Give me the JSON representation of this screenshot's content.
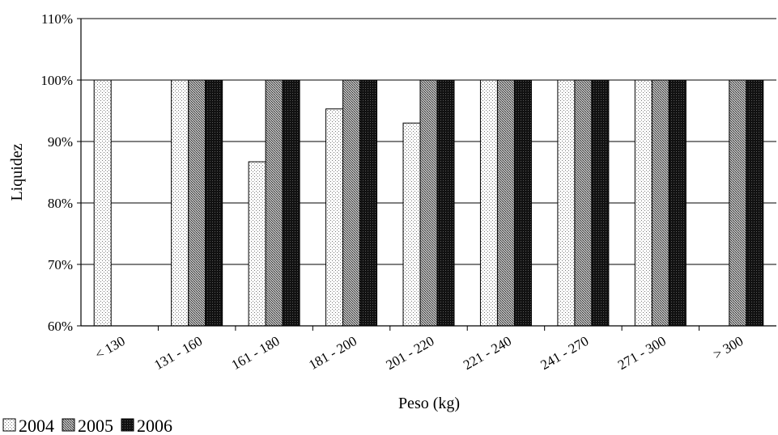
{
  "chart_data": {
    "type": "bar",
    "title": "",
    "xlabel": "Peso (kg)",
    "ylabel": "Liquidez",
    "ylim": [
      0.6,
      1.1
    ],
    "yticks": [
      0.6,
      0.7,
      0.8,
      0.9,
      1.0,
      1.1
    ],
    "ytick_labels": [
      "60%",
      "70%",
      "80%",
      "90%",
      "100%",
      "110%"
    ],
    "grid": "horizontal",
    "legend_position": "bottom-left",
    "categories": [
      "< 130",
      "131 - 160",
      "161 - 180",
      "181 - 200",
      "201 - 220",
      "221 - 240",
      "241 - 270",
      "271 - 300",
      "> 300"
    ],
    "series": [
      {
        "name": "2004",
        "pattern": "light-dots",
        "values": [
          1.0,
          1.0,
          0.867,
          0.953,
          0.93,
          1.0,
          1.0,
          1.0,
          null
        ]
      },
      {
        "name": "2005",
        "pattern": "medium-dots",
        "values": [
          null,
          1.0,
          1.0,
          1.0,
          1.0,
          1.0,
          1.0,
          1.0,
          1.0
        ]
      },
      {
        "name": "2006",
        "pattern": "dark-dots",
        "values": [
          null,
          1.0,
          1.0,
          1.0,
          1.0,
          1.0,
          1.0,
          1.0,
          1.0
        ]
      }
    ]
  }
}
